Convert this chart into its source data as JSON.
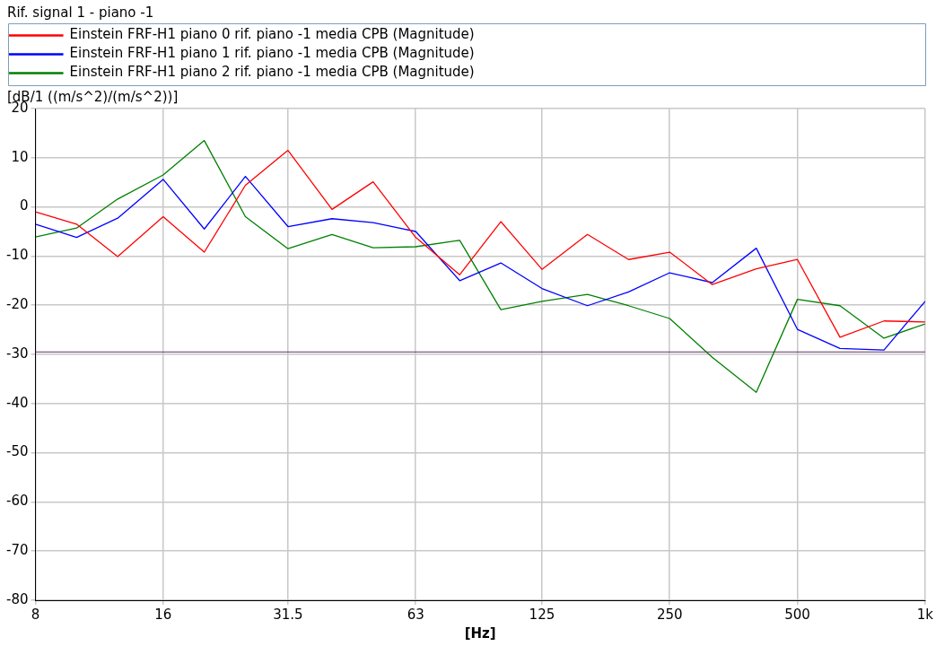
{
  "chart_data": {
    "type": "line",
    "title": "Rif. signal 1 - piano -1",
    "xlabel": "[Hz]",
    "ylabel": "[dB/1 ((m/s^2)/(m/s^2))]",
    "x": [
      8,
      10,
      12.5,
      16,
      20,
      25,
      31.5,
      40,
      50,
      63,
      80,
      100,
      125,
      160,
      200,
      250,
      315,
      400,
      500,
      630,
      800,
      1000
    ],
    "series": [
      {
        "name": "Einstein FRF-H1 piano 0 rif. piano -1 media CPB (Magnitude)",
        "color": "#ff0000",
        "values": [
          -1.0,
          -3.5,
          -10.1,
          -2.0,
          -9.2,
          4.4,
          11.5,
          -0.5,
          5.1,
          -6.2,
          -13.8,
          -3.0,
          -12.7,
          -5.6,
          -10.7,
          -9.2,
          -15.8,
          -12.6,
          -10.7,
          -26.5,
          -23.2,
          -23.4
        ]
      },
      {
        "name": "Einstein FRF-H1 piano 1 rif. piano -1 media CPB (Magnitude)",
        "color": "#0000ff",
        "values": [
          -3.5,
          -6.2,
          -2.3,
          5.6,
          -4.5,
          6.2,
          -4.0,
          -2.4,
          -3.2,
          -5.0,
          -15.0,
          -11.4,
          -16.6,
          -20.1,
          -17.3,
          -13.4,
          -15.4,
          -8.4,
          -24.9,
          -28.8,
          -29.1,
          -19.2
        ]
      },
      {
        "name": "Einstein FRF-H1 piano 2 rif. piano -1 media CPB (Magnitude)",
        "color": "#008000",
        "values": [
          -6.1,
          -4.3,
          1.6,
          6.5,
          13.5,
          -2.0,
          -8.5,
          -5.6,
          -8.3,
          -8.1,
          -6.8,
          -20.9,
          -19.2,
          -17.8,
          -20.1,
          -22.7,
          -30.6,
          -37.7,
          -18.8,
          -20.1,
          -26.7,
          -23.8
        ]
      }
    ],
    "log": "x",
    "xlim": [
      8,
      1000
    ],
    "xticks": [
      8,
      16,
      31.5,
      63,
      125,
      250,
      500,
      {
        "value": 1000,
        "label": "1k"
      }
    ],
    "ylim": [
      -80,
      20
    ],
    "yticks": [
      -80,
      -70,
      -60,
      -50,
      -40,
      -30,
      -20,
      -10,
      0,
      10,
      20
    ],
    "ref_lines": [
      {
        "axis": "y",
        "value": -29.5,
        "color": "#603060"
      }
    ],
    "grid": true,
    "legend": "top",
    "marker": "none",
    "line_style": "solid"
  }
}
